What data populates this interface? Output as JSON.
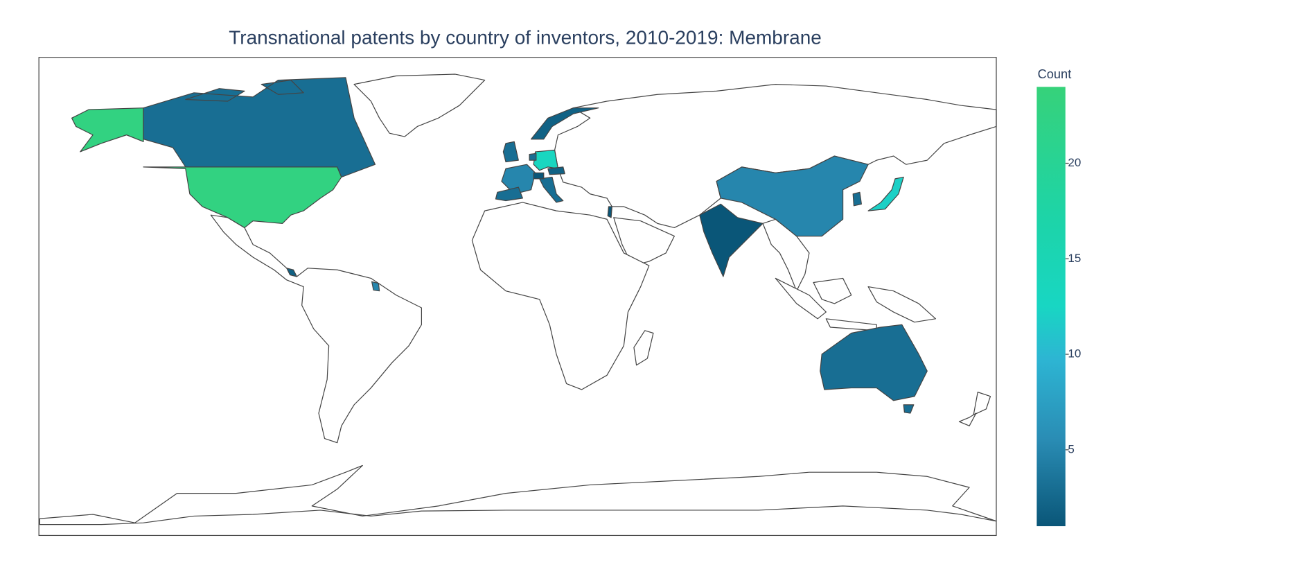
{
  "chart_data": {
    "type": "choropleth",
    "title": "Transnational patents by country of inventors, 2010-2019: Membrane",
    "colorbar_title": "Count",
    "values": [
      23,
      3,
      13,
      12,
      5,
      5,
      3,
      3,
      3,
      2,
      1,
      3,
      3,
      1,
      2,
      2,
      3,
      1
    ],
    "zlim": [
      1,
      24
    ],
    "zticks": [
      5,
      10,
      15,
      20
    ],
    "colorscale": [
      [
        0,
        "#0a5678"
      ],
      [
        0.2,
        "#2a8db5"
      ],
      [
        0.38,
        "#2db5d3"
      ],
      [
        0.5,
        "#18d6c3"
      ],
      [
        0.7,
        "#1dd4a8"
      ],
      [
        1,
        "#36d27a"
      ]
    ]
  }
}
